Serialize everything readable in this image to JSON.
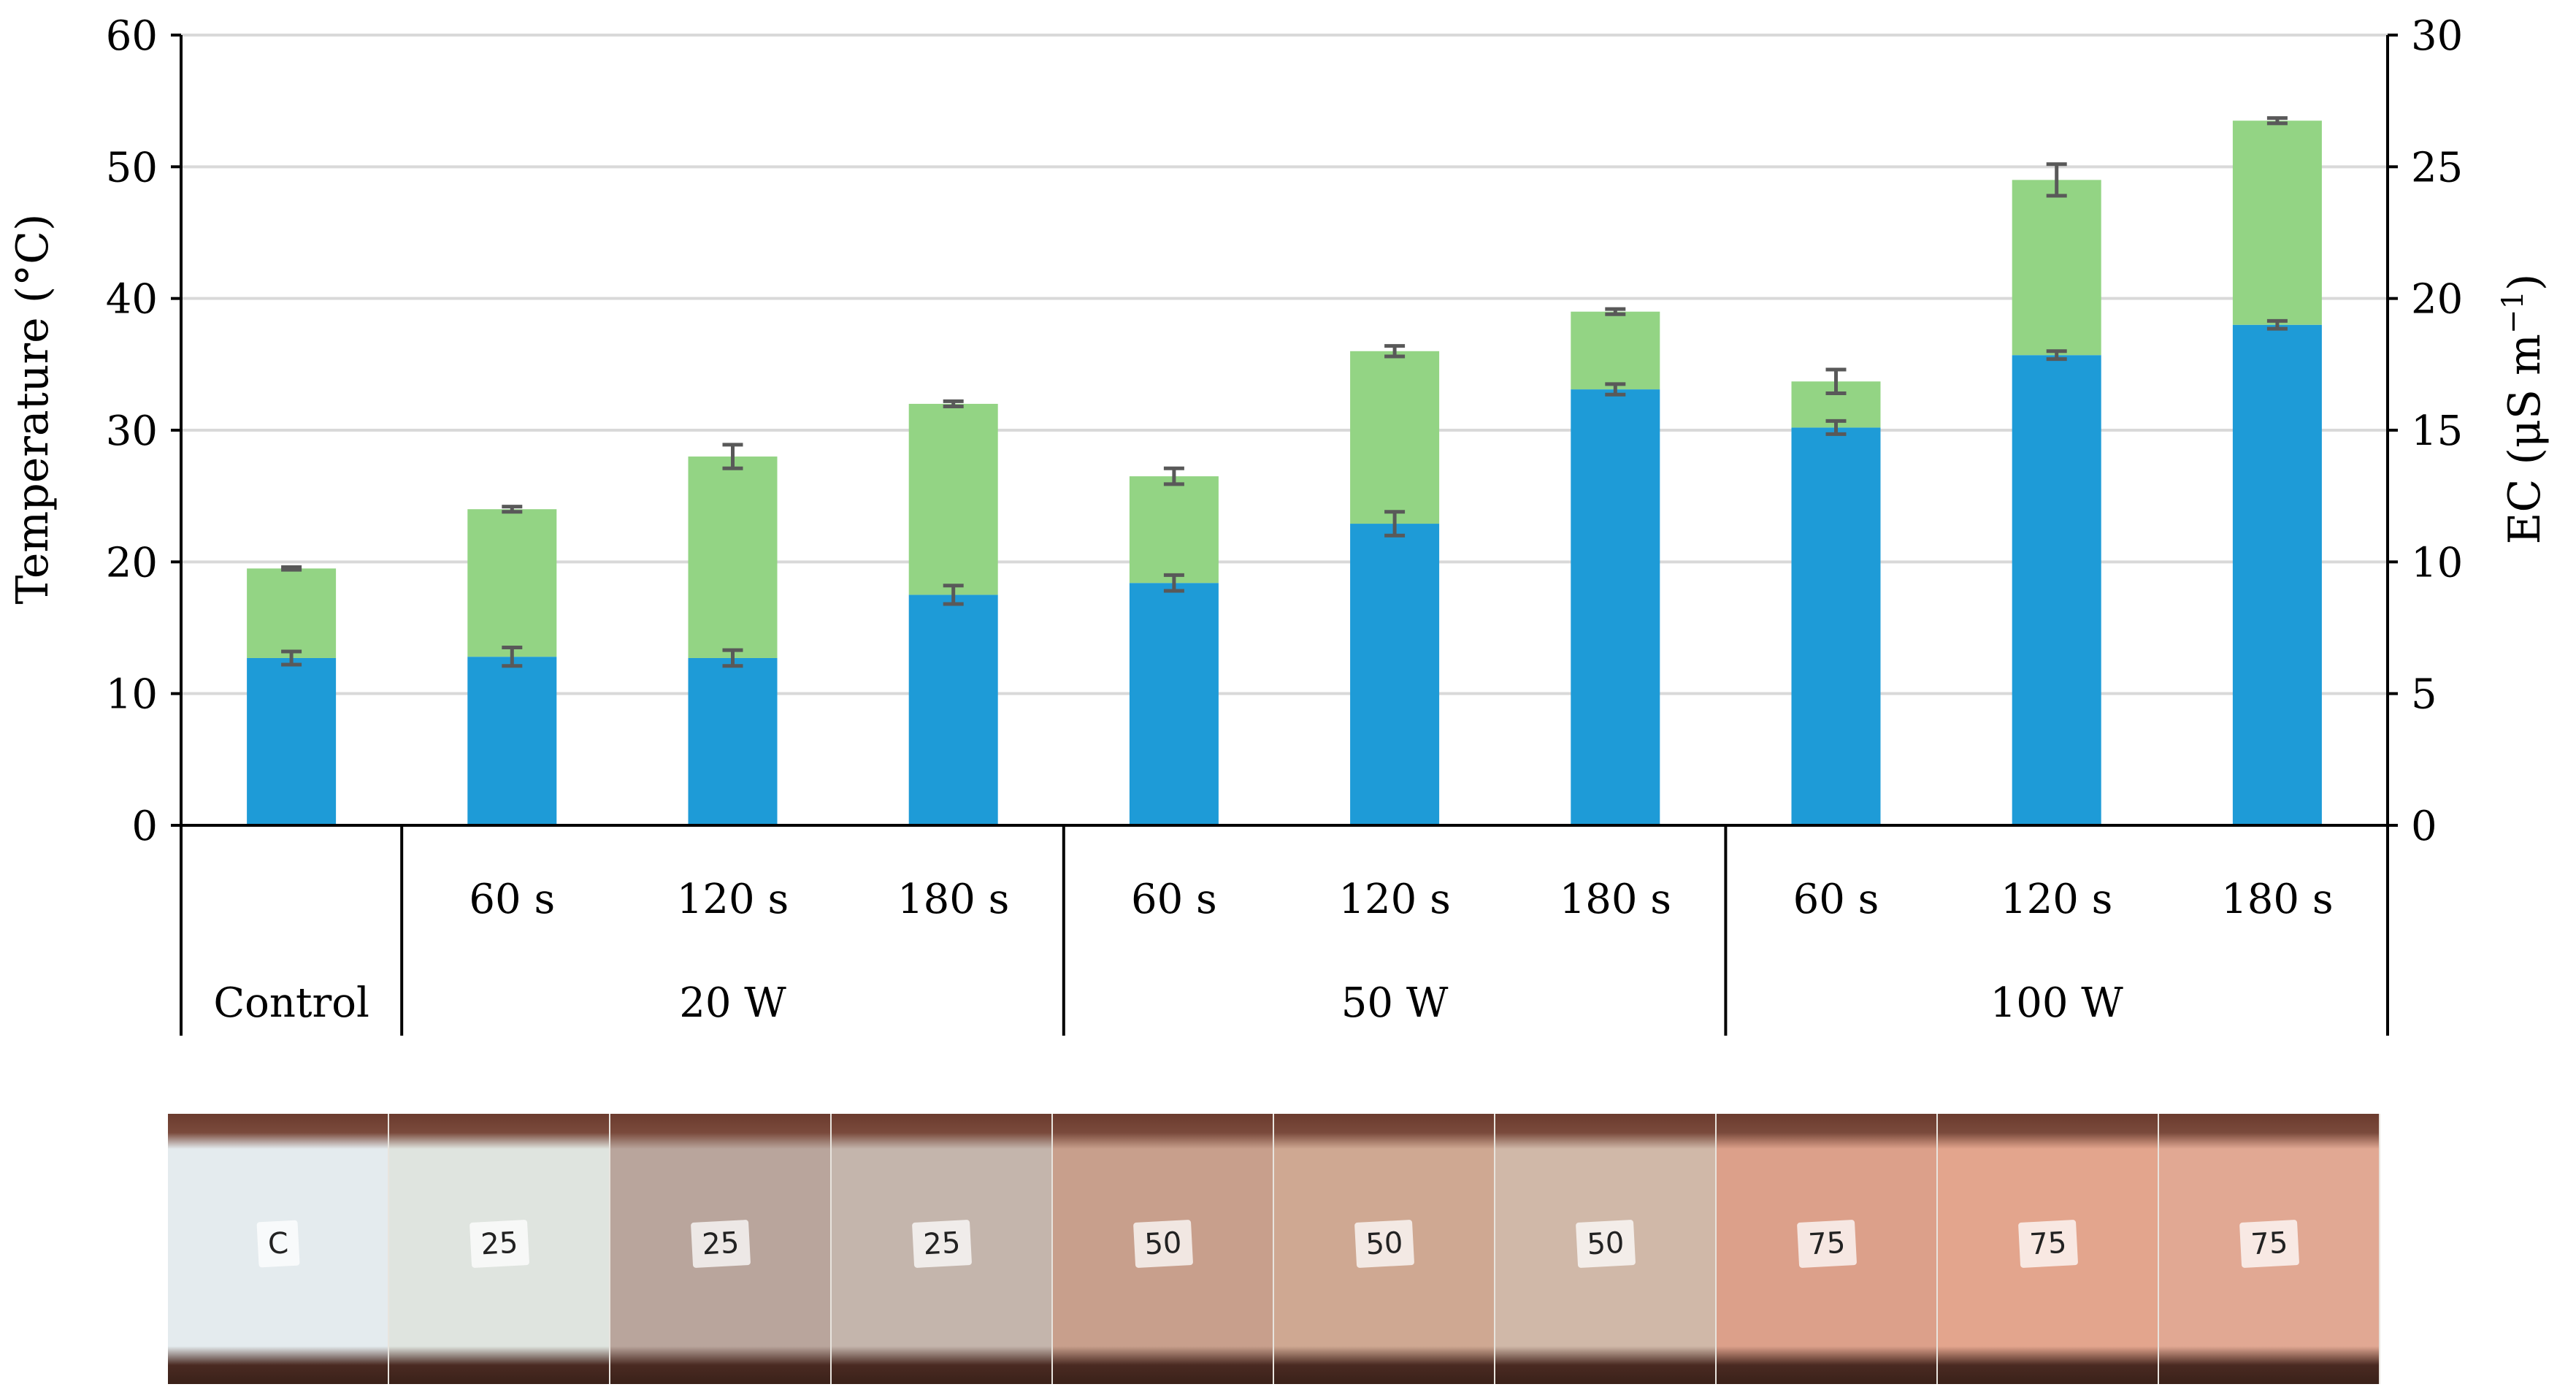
{
  "chart_data": {
    "type": "bar",
    "stacked": true,
    "categories": [
      "",
      "60 s",
      "120 s",
      "180 s",
      "60 s",
      "120 s",
      "180 s",
      "60 s",
      "120 s",
      "180 s"
    ],
    "groups": [
      {
        "label": "Control",
        "span": 1
      },
      {
        "label": "20 W",
        "span": 3
      },
      {
        "label": "50 W",
        "span": 3
      },
      {
        "label": "100 W",
        "span": 3
      }
    ],
    "series": [
      {
        "color": "#1e9bd7",
        "values": [
          12.7,
          12.8,
          12.7,
          17.5,
          18.4,
          22.9,
          33.1,
          30.2,
          35.7,
          38.0
        ],
        "errors": [
          0.5,
          0.7,
          0.6,
          0.7,
          0.6,
          0.9,
          0.4,
          0.5,
          0.3,
          0.3
        ]
      },
      {
        "color": "#93d484",
        "values": [
          6.8,
          11.2,
          15.3,
          14.5,
          8.1,
          13.1,
          5.9,
          3.5,
          13.3,
          15.5
        ],
        "errors": [
          0.1,
          0.2,
          0.9,
          0.2,
          0.6,
          0.4,
          0.2,
          0.9,
          1.2,
          0.2
        ]
      }
    ],
    "ylabel": "Temperature (°C)",
    "y2label_base": "EC (μS m",
    "y2label_sup": "−1",
    "y2label_close": ")",
    "ylim": [
      0,
      60
    ],
    "y2lim": [
      0,
      30
    ],
    "yticks": [
      "0",
      "10",
      "20",
      "30",
      "40",
      "50",
      "60"
    ],
    "y2ticks": [
      "0",
      "5",
      "10",
      "15",
      "20",
      "25",
      "30"
    ],
    "grid": true,
    "gridColor": "#d9d9d9",
    "errorColor": "#595959"
  },
  "photos": {
    "labels": [
      "C",
      "25",
      "25",
      "25",
      "50",
      "50",
      "50",
      "75",
      "75",
      "75"
    ],
    "colors": [
      "#e4ebee",
      "#dfe4df",
      "#b9a59c",
      "#c4b5ac",
      "#c89f8c",
      "#cfa892",
      "#d0b8a8",
      "#dca08a",
      "#e3a58d",
      "#e1a893"
    ]
  }
}
